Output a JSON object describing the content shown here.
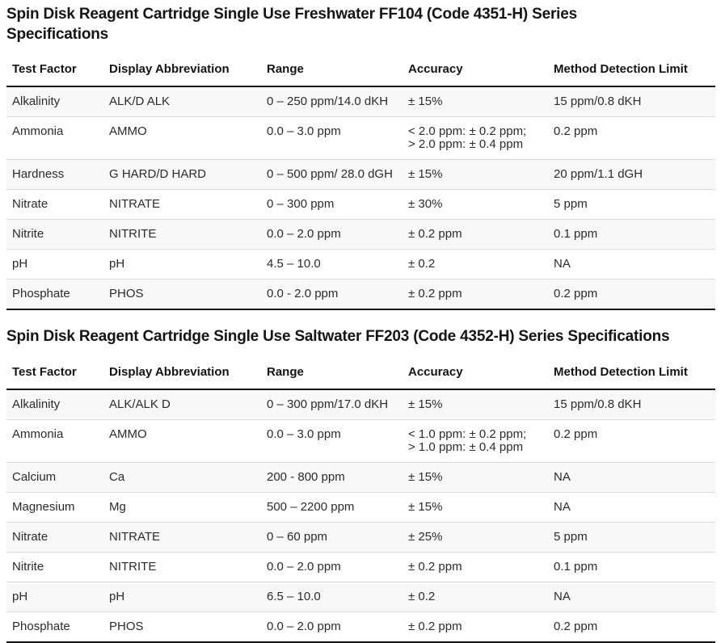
{
  "colors": {
    "stripe_row_bg": "#f8f8f8",
    "heavy_rule": "#111111",
    "light_rule": "#dcdcdc",
    "text": "#2b2b2b"
  },
  "tables": [
    {
      "title": "Spin Disk Reagent Cartridge Single Use Freshwater FF104 (Code 4351-H) Series Specifications",
      "columns": [
        "Test Factor",
        "Display Abbreviation",
        "Range",
        "Accuracy",
        "Method Detection Limit"
      ],
      "rows": [
        [
          "Alkalinity",
          "ALK/D ALK",
          "0 – 250 ppm/14.0 dKH",
          "± 15%",
          "15 ppm/0.8 dKH"
        ],
        [
          "Ammonia",
          "AMMO",
          "0.0 – 3.0 ppm",
          "< 2.0 ppm: ± 0.2 ppm;\n> 2.0 ppm: ± 0.4 ppm",
          "0.2 ppm"
        ],
        [
          "Hardness",
          "G HARD/D HARD",
          "0 – 500 ppm/ 28.0 dGH",
          "± 15%",
          "20 ppm/1.1 dGH"
        ],
        [
          "Nitrate",
          "NITRATE",
          "0 – 300 ppm",
          "± 30%",
          "5 ppm"
        ],
        [
          "Nitrite",
          "NITRITE",
          "0.0 – 2.0 ppm",
          "± 0.2 ppm",
          "0.1 ppm"
        ],
        [
          "pH",
          "pH",
          "4.5 – 10.0",
          "± 0.2",
          "NA"
        ],
        [
          "Phosphate",
          "PHOS",
          "0.0 - 2.0 ppm",
          "± 0.2 ppm",
          "0.2 ppm"
        ]
      ]
    },
    {
      "title": "Spin Disk Reagent Cartridge Single Use Saltwater FF203 (Code 4352-H) Series Specifications",
      "columns": [
        "Test Factor",
        "Display Abbreviation",
        "Range",
        "Accuracy",
        "Method Detection Limit"
      ],
      "rows": [
        [
          "Alkalinity",
          "ALK/ALK D",
          "0 – 300 ppm/17.0 dKH",
          "± 15%",
          "15 ppm/0.8 dKH"
        ],
        [
          "Ammonia",
          "AMMO",
          "0.0 – 3.0 ppm",
          "< 1.0 ppm: ± 0.2 ppm;\n> 1.0 ppm: ± 0.4 ppm",
          "0.2 ppm"
        ],
        [
          "Calcium",
          "Ca",
          "200 - 800 ppm",
          "± 15%",
          "NA"
        ],
        [
          "Magnesium",
          "Mg",
          "500 – 2200 ppm",
          "± 15%",
          "NA"
        ],
        [
          "Nitrate",
          "NITRATE",
          "0 – 60 ppm",
          "± 25%",
          "5 ppm"
        ],
        [
          "Nitrite",
          "NITRITE",
          "0.0 – 2.0 ppm",
          "± 0.2 ppm",
          "0.1 ppm"
        ],
        [
          "pH",
          "pH",
          "6.5 – 10.0",
          "± 0.2",
          "NA"
        ],
        [
          "Phosphate",
          "PHOS",
          "0.0 – 2.0 ppm",
          "± 0.2 ppm",
          "0.2 ppm"
        ]
      ]
    }
  ]
}
